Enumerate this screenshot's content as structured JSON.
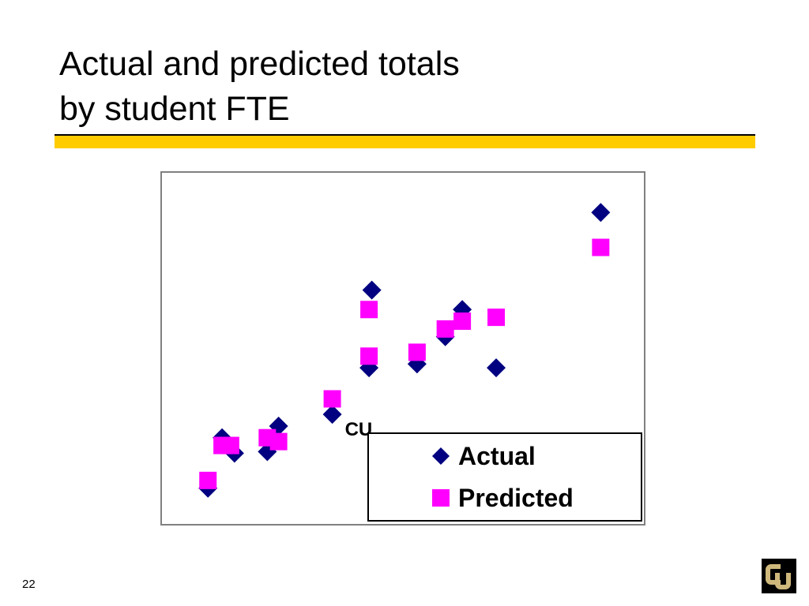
{
  "slide": {
    "title_line1": "Actual and predicted totals",
    "title_line2": "by student FTE",
    "page_number": "22",
    "accent_color": "#ffcc00"
  },
  "logo": {
    "icon": "university-logo-icon",
    "letters": "CU"
  },
  "chart_data": {
    "type": "scatter",
    "series": [
      {
        "name": "Actual",
        "marker": "diamond",
        "color": "#000080",
        "points": [
          [
            8.0,
            4.5
          ],
          [
            10.5,
            11.0
          ],
          [
            12.7,
            9.0
          ],
          [
            18.5,
            9.2
          ],
          [
            20.5,
            12.5
          ],
          [
            30.0,
            14.0
          ],
          [
            36.5,
            20.0
          ],
          [
            37.0,
            30.0
          ],
          [
            45.0,
            20.5
          ],
          [
            50.0,
            24.0
          ],
          [
            53.0,
            27.5
          ],
          [
            59.0,
            20.0
          ],
          [
            77.5,
            40.0
          ]
        ]
      },
      {
        "name": "Predicted",
        "marker": "square",
        "color": "#ff00ff",
        "points": [
          [
            8.0,
            5.5
          ],
          [
            10.5,
            10.0
          ],
          [
            12.0,
            10.0
          ],
          [
            18.5,
            11.0
          ],
          [
            20.5,
            10.5
          ],
          [
            30.0,
            16.0
          ],
          [
            36.5,
            21.5
          ],
          [
            36.5,
            27.5
          ],
          [
            45.0,
            22.0
          ],
          [
            50.0,
            25.0
          ],
          [
            53.0,
            26.0
          ],
          [
            59.0,
            26.5
          ],
          [
            77.5,
            35.5
          ]
        ]
      }
    ],
    "xlim": [
      0,
      85
    ],
    "ylim": [
      0,
      45
    ],
    "grid": false,
    "annotations": [
      {
        "text": "CU",
        "x": 30.0,
        "y": 14.0
      }
    ],
    "legend_position": "bottom-right"
  }
}
